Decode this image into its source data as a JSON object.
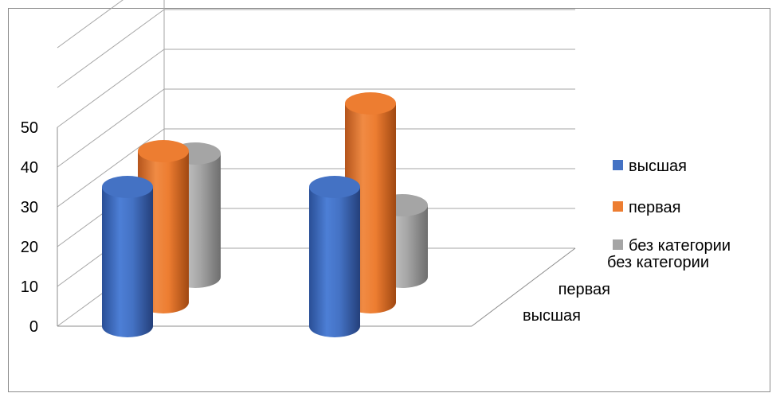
{
  "chart_data": {
    "type": "bar",
    "subtype": "3d-cylinder",
    "categories": [
      "",
      ""
    ],
    "series": [
      {
        "name": "высшая",
        "values": [
          35,
          35
        ],
        "color": "#4472C4"
      },
      {
        "name": "первая",
        "values": [
          38,
          50
        ],
        "color": "#ED7D31"
      },
      {
        "name": "без категории",
        "values": [
          31,
          18
        ],
        "color": "#A5A5A5"
      }
    ],
    "yticks": [
      0,
      10,
      20,
      30,
      40,
      50
    ],
    "ylim": [
      0,
      50
    ],
    "grid": true,
    "legend": "right",
    "depth_labels": [
      "без категории",
      "первая",
      "высшая"
    ],
    "title": "",
    "xlabel": "",
    "ylabel": ""
  }
}
